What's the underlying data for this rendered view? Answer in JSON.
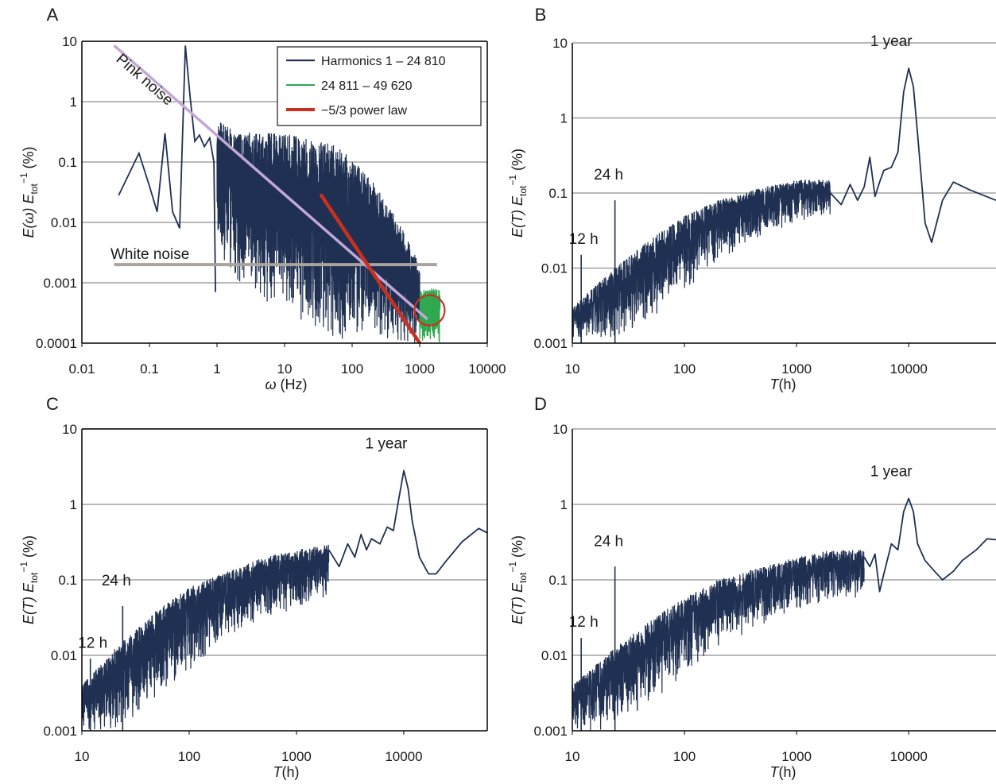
{
  "figure": {
    "colors": {
      "series_main": "#1f3052",
      "series_green": "#2fa84f",
      "red": "#c9301f",
      "pink_line": "#c2a8d6",
      "white_line": "#a8a39b",
      "grid": "#8f8f8f"
    }
  },
  "chart_data": [
    {
      "panel": "A",
      "type": "line",
      "x_scale": "log",
      "y_scale": "log",
      "xlim": [
        0.01,
        10000
      ],
      "ylim": [
        0.0001,
        10
      ],
      "x_ticks": [
        "0.01",
        "0.1",
        "1",
        "10",
        "100",
        "1000",
        "10000"
      ],
      "y_ticks": [
        "0.0001",
        "0.001",
        "0.01",
        "0.1",
        "1",
        "10"
      ],
      "x_tick_values": [
        0.01,
        0.1,
        1,
        10,
        100,
        1000,
        10000
      ],
      "y_tick_values": [
        0.0001,
        0.001,
        0.01,
        0.1,
        1,
        10
      ],
      "xlabel": {
        "sym": "ω",
        "rest": " (Hz)"
      },
      "ylabel": {
        "a": "E(",
        "sym": "ω",
        "b": ") E",
        "sub": "tot",
        "sup": "−1",
        "c": " (%)"
      },
      "grid": "horizontal",
      "legend": {
        "placement": "top-right",
        "items": [
          "Harmonics 1 – 24 810",
          "24 811 – 49 620",
          "−5/3 power law"
        ]
      },
      "annotations": [
        "Pink noise",
        "White noise"
      ],
      "low_harmonics": {
        "x": [
          0.035,
          0.07,
          0.1,
          0.13,
          0.17,
          0.22,
          0.28,
          0.34,
          0.4,
          0.47,
          0.55,
          0.65,
          0.78,
          0.9,
          0.95
        ],
        "y": [
          0.028,
          0.14,
          0.04,
          0.015,
          0.3,
          0.015,
          0.008,
          8.5,
          1.2,
          0.22,
          0.28,
          0.18,
          0.25,
          0.1,
          0.0007
        ]
      },
      "band_envelope": {
        "x": [
          1,
          2,
          5,
          10,
          20,
          50,
          100,
          200,
          500,
          1000
        ],
        "upper": [
          0.5,
          0.3,
          0.3,
          0.3,
          0.25,
          0.2,
          0.12,
          0.05,
          0.01,
          0.002
        ],
        "lower": [
          0.003,
          0.001,
          0.0005,
          0.0004,
          0.0002,
          0.0001,
          0.0001,
          0.0001,
          0.0001,
          0.0001
        ]
      },
      "green_band": {
        "x_range": [
          1000,
          2000
        ],
        "y_range": [
          0.0001,
          0.0008
        ]
      },
      "pink_noise": {
        "x": [
          0.03,
          1300
        ],
        "y": [
          8.5,
          0.00025
        ]
      },
      "white_noise": {
        "x": [
          0.03,
          1800
        ],
        "y": [
          0.002,
          0.002
        ]
      },
      "power_law": {
        "x": [
          35,
          1000
        ],
        "y": [
          0.028,
          0.0001
        ]
      },
      "highlight_circle": {
        "x": 1400,
        "y": 0.00035
      }
    },
    {
      "panel": "B",
      "type": "line",
      "x_scale": "log",
      "y_scale": "log",
      "xlim": [
        10,
        60000
      ],
      "ylim": [
        0.001,
        10
      ],
      "x_ticks": [
        "10",
        "100",
        "1000",
        "10000"
      ],
      "y_ticks": [
        "0.001",
        "0.01",
        "0.1",
        "1",
        "10"
      ],
      "x_tick_values": [
        10,
        100,
        1000,
        10000
      ],
      "y_tick_values": [
        0.001,
        0.01,
        0.1,
        1,
        10
      ],
      "xlabel": {
        "sym": "T",
        "rest": "(h)"
      },
      "ylabel": {
        "a": "E(",
        "sym": "T",
        "b": ") E",
        "sub": "tot",
        "sup": "−1",
        "c": " (%)"
      },
      "grid": "horizontal",
      "annotations": [
        "1 year",
        "24 h",
        "12 h"
      ],
      "spikes": [
        {
          "x": 12,
          "y": 0.015
        },
        {
          "x": 24,
          "y": 0.08
        }
      ],
      "noisy_band": {
        "x": [
          10,
          20,
          50,
          100,
          200,
          500,
          1000,
          2000
        ],
        "upper": [
          0.003,
          0.008,
          0.025,
          0.05,
          0.08,
          0.12,
          0.15,
          0.15
        ],
        "lower": [
          0.001,
          0.001,
          0.002,
          0.005,
          0.012,
          0.025,
          0.04,
          0.05
        ]
      },
      "smooth_line": {
        "x": [
          2000,
          2500,
          3000,
          3500,
          4000,
          4500,
          5000,
          5500,
          6000,
          7000,
          8000,
          9000,
          10000,
          11000,
          12000,
          14000,
          16000,
          20000,
          25000,
          35000,
          60000
        ],
        "y": [
          0.1,
          0.07,
          0.13,
          0.08,
          0.12,
          0.3,
          0.09,
          0.14,
          0.2,
          0.22,
          0.35,
          2.2,
          4.6,
          2.6,
          0.6,
          0.04,
          0.022,
          0.08,
          0.14,
          0.11,
          0.08
        ]
      }
    },
    {
      "panel": "C",
      "type": "line",
      "x_scale": "log",
      "y_scale": "log",
      "xlim": [
        10,
        60000
      ],
      "ylim": [
        0.001,
        10
      ],
      "x_ticks": [
        "10",
        "100",
        "1000",
        "10000"
      ],
      "y_ticks": [
        "0.001",
        "0.01",
        "0.1",
        "1",
        "10"
      ],
      "x_tick_values": [
        10,
        100,
        1000,
        10000
      ],
      "y_tick_values": [
        0.001,
        0.01,
        0.1,
        1,
        10
      ],
      "xlabel": {
        "sym": "T",
        "rest": "(h)"
      },
      "ylabel": {
        "a": "E(",
        "sym": "T",
        "b": ") E",
        "sub": "tot",
        "sup": "−1",
        "c": " (%)"
      },
      "grid": "horizontal",
      "annotations": [
        "1 year",
        "24 h",
        "12 h"
      ],
      "spikes": [
        {
          "x": 12,
          "y": 0.009
        },
        {
          "x": 24,
          "y": 0.045
        }
      ],
      "noisy_band": {
        "x": [
          10,
          20,
          50,
          100,
          200,
          500,
          1000,
          2000
        ],
        "upper": [
          0.004,
          0.012,
          0.04,
          0.08,
          0.12,
          0.2,
          0.25,
          0.3
        ],
        "lower": [
          0.001,
          0.001,
          0.002,
          0.006,
          0.015,
          0.03,
          0.04,
          0.06
        ]
      },
      "smooth_line": {
        "x": [
          2000,
          2500,
          3000,
          3500,
          4000,
          4500,
          5000,
          6000,
          7000,
          8000,
          9000,
          10000,
          11000,
          12000,
          14000,
          17000,
          20000,
          25000,
          35000,
          50000,
          60000
        ],
        "y": [
          0.25,
          0.15,
          0.3,
          0.2,
          0.4,
          0.25,
          0.35,
          0.3,
          0.5,
          0.45,
          1.2,
          2.8,
          1.6,
          0.6,
          0.2,
          0.12,
          0.12,
          0.18,
          0.32,
          0.48,
          0.42
        ]
      }
    },
    {
      "panel": "D",
      "type": "line",
      "x_scale": "log",
      "y_scale": "log",
      "xlim": [
        10,
        60000
      ],
      "ylim": [
        0.001,
        10
      ],
      "x_ticks": [
        "10",
        "100",
        "1000",
        "10000"
      ],
      "y_ticks": [
        "0.001",
        "0.01",
        "0.1",
        "1",
        "10"
      ],
      "x_tick_values": [
        10,
        100,
        1000,
        10000
      ],
      "y_tick_values": [
        0.001,
        0.01,
        0.1,
        1,
        10
      ],
      "xlabel": {
        "sym": "T",
        "rest": "(h)"
      },
      "ylabel": {
        "a": "E(",
        "sym": "T",
        "b": ") E",
        "sub": "tot",
        "sup": "−1",
        "c": " (%)"
      },
      "grid": "horizontal",
      "annotations": [
        "1 year",
        "24 h",
        "12 h"
      ],
      "spikes": [
        {
          "x": 12,
          "y": 0.017
        },
        {
          "x": 24,
          "y": 0.15
        }
      ],
      "noisy_band": {
        "x": [
          10,
          20,
          50,
          100,
          200,
          500,
          1000,
          2000,
          4000
        ],
        "upper": [
          0.004,
          0.01,
          0.03,
          0.06,
          0.1,
          0.15,
          0.2,
          0.25,
          0.25
        ],
        "lower": [
          0.001,
          0.001,
          0.002,
          0.005,
          0.012,
          0.025,
          0.035,
          0.05,
          0.06
        ]
      },
      "smooth_line": {
        "x": [
          4000,
          4500,
          5000,
          5500,
          6000,
          7000,
          8000,
          9000,
          10000,
          11000,
          12000,
          14000,
          17000,
          20000,
          25000,
          30000,
          40000,
          50000,
          60000
        ],
        "y": [
          0.2,
          0.15,
          0.22,
          0.07,
          0.12,
          0.3,
          0.25,
          0.8,
          1.2,
          0.8,
          0.3,
          0.18,
          0.13,
          0.1,
          0.13,
          0.18,
          0.25,
          0.35,
          0.34
        ]
      }
    }
  ]
}
